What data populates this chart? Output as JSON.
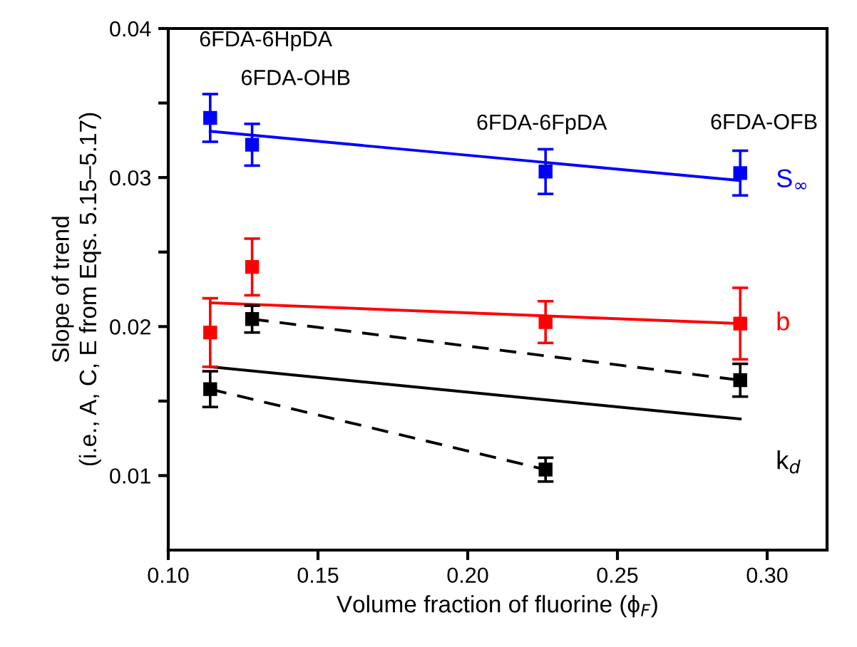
{
  "chart_data": {
    "type": "scatter",
    "xlabel": "Volume fraction of fluorine (ϕ$_{F}$)",
    "ylabel": "Slope of trend\n(i.e., A, C, E from Eqs. 5.15–5.17)",
    "xlim": [
      0.1,
      0.32
    ],
    "xticks": [
      {
        "value": 0.1,
        "label": "0.10"
      },
      0.15,
      {
        "value": 0.2,
        "label": "0.20"
      },
      0.25,
      {
        "value": 0.3,
        "label": "0.30"
      }
    ],
    "ylim": [
      0.005,
      0.04
    ],
    "yticks": [
      {
        "value": 0.01,
        "label": "0.01"
      },
      {
        "value": 0.015,
        "label": null
      },
      {
        "value": 0.02,
        "label": "0.02"
      },
      {
        "value": 0.025,
        "label": null
      },
      {
        "value": 0.03,
        "label": "0.03"
      },
      {
        "value": 0.035,
        "label": null
      },
      {
        "value": 0.04,
        "label": "0.04"
      }
    ],
    "grid": false,
    "legend": false,
    "series": [
      {
        "color": "#0000ff",
        "marker": "square",
        "x": [
          0.114,
          0.128,
          0.226,
          0.291
        ],
        "values": [
          0.034,
          0.0322,
          0.0304,
          0.0303
        ],
        "errors": [
          0.0016,
          0.0014,
          0.0015,
          0.0015
        ]
      },
      {
        "type": "line",
        "name": "S$_{∞}$",
        "color": "#0000ff",
        "marker": "none",
        "x": [
          0.114,
          0.291
        ],
        "values": [
          0.0331,
          0.0298
        ],
        "line_style": "solid"
      },
      {
        "color": "#ff0000",
        "marker": "square",
        "x": [
          0.114,
          0.128,
          0.226,
          0.291
        ],
        "values": [
          0.0196,
          0.024,
          0.0203,
          0.0202
        ],
        "errors": [
          0.0023,
          0.0019,
          0.0014,
          0.0024
        ]
      },
      {
        "type": "line",
        "name": "b",
        "color": "#ff0000",
        "marker": "none",
        "x": [
          0.114,
          0.291
        ],
        "values": [
          0.0216,
          0.0202
        ],
        "line_style": "solid"
      },
      {
        "color": "#000000",
        "marker": "square",
        "x": [
          0.114,
          0.128,
          0.226,
          0.291
        ],
        "values": [
          0.0158,
          0.0205,
          0.0104,
          0.0164
        ],
        "errors": [
          0.0012,
          0.0009,
          0.0008,
          0.0011
        ]
      },
      {
        "type": "line",
        "name": "k$_{d}$",
        "color": "#000000",
        "marker": "none",
        "x": [
          0.114,
          0.291
        ],
        "values": [
          0.0173,
          0.0138
        ],
        "line_style": "solid"
      },
      {
        "type": "line",
        "color": "#000000",
        "marker": "none",
        "x": [
          0.128,
          0.291
        ],
        "values": [
          0.0205,
          0.0164
        ],
        "line_style": "dashed"
      },
      {
        "type": "line",
        "color": "#000000",
        "marker": "none",
        "x": [
          0.114,
          0.226
        ],
        "values": [
          0.0158,
          0.0104
        ],
        "line_style": "dashed"
      }
    ],
    "annotations": [
      "6FDA-6HpDA",
      "6FDA-OHB",
      "6FDA-6FpDA",
      "6FDA-OFB"
    ]
  }
}
